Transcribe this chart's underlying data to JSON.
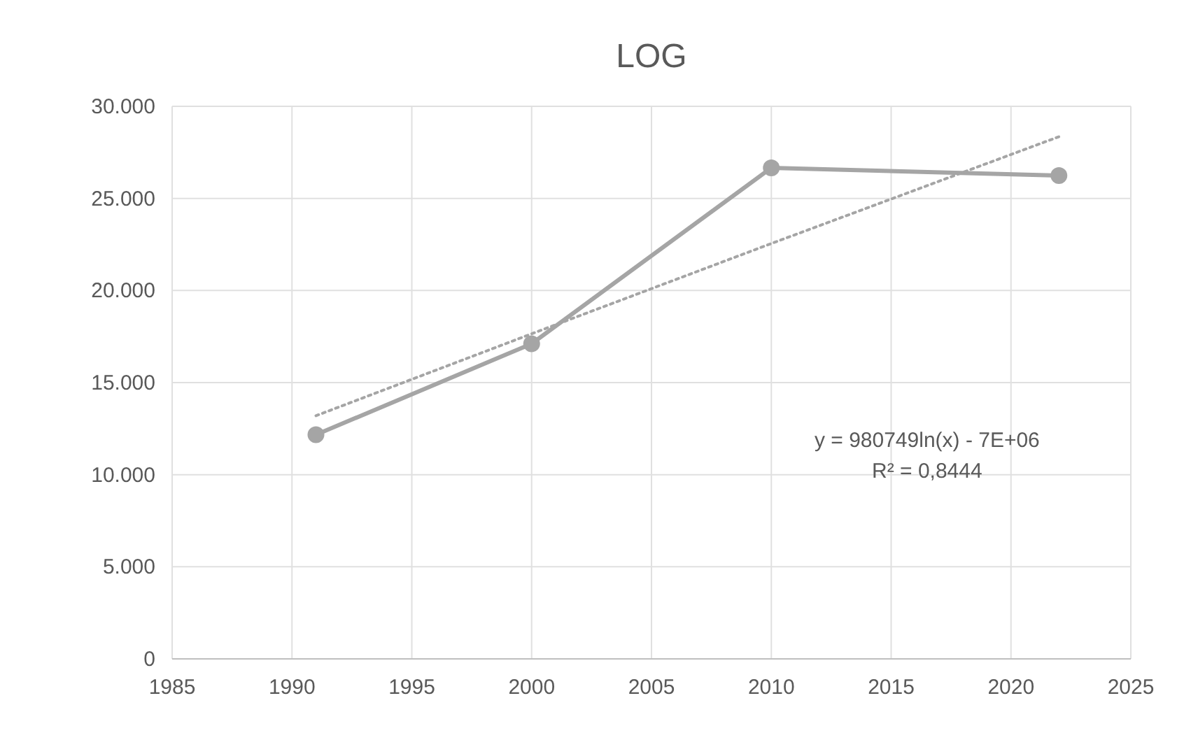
{
  "chart_data": {
    "type": "line",
    "title": "LOG",
    "x": [
      1991,
      2000,
      2010,
      2022
    ],
    "series": [
      {
        "color": "#a5a5a5",
        "values": [
          12170,
          17110,
          26660,
          26240
        ],
        "marker": "circle",
        "line_style": "solid"
      },
      {
        "color": "#a5a5a5",
        "x": [
          1991,
          2000,
          2010,
          2022
        ],
        "values": [
          13200,
          17650,
          22550,
          28350
        ],
        "marker": "none",
        "line_style": "dotted"
      }
    ],
    "xlim": [
      1985,
      2025
    ],
    "xticks": [
      1985,
      1990,
      1995,
      2000,
      2005,
      2010,
      2015,
      2020,
      2025
    ],
    "ylim": [
      0,
      30000
    ],
    "yticks": [
      0,
      {
        "value": 5000,
        "label": "5.000"
      },
      {
        "value": 10000,
        "label": "10.000"
      },
      {
        "value": 15000,
        "label": "15.000"
      },
      {
        "value": 20000,
        "label": "20.000"
      },
      {
        "value": 25000,
        "label": "25.000"
      },
      {
        "value": 30000,
        "label": "30.000"
      }
    ],
    "grid": true,
    "annotations": [
      "y = 980749ln(x) - 7E+06",
      "R² = 0,8444"
    ]
  }
}
